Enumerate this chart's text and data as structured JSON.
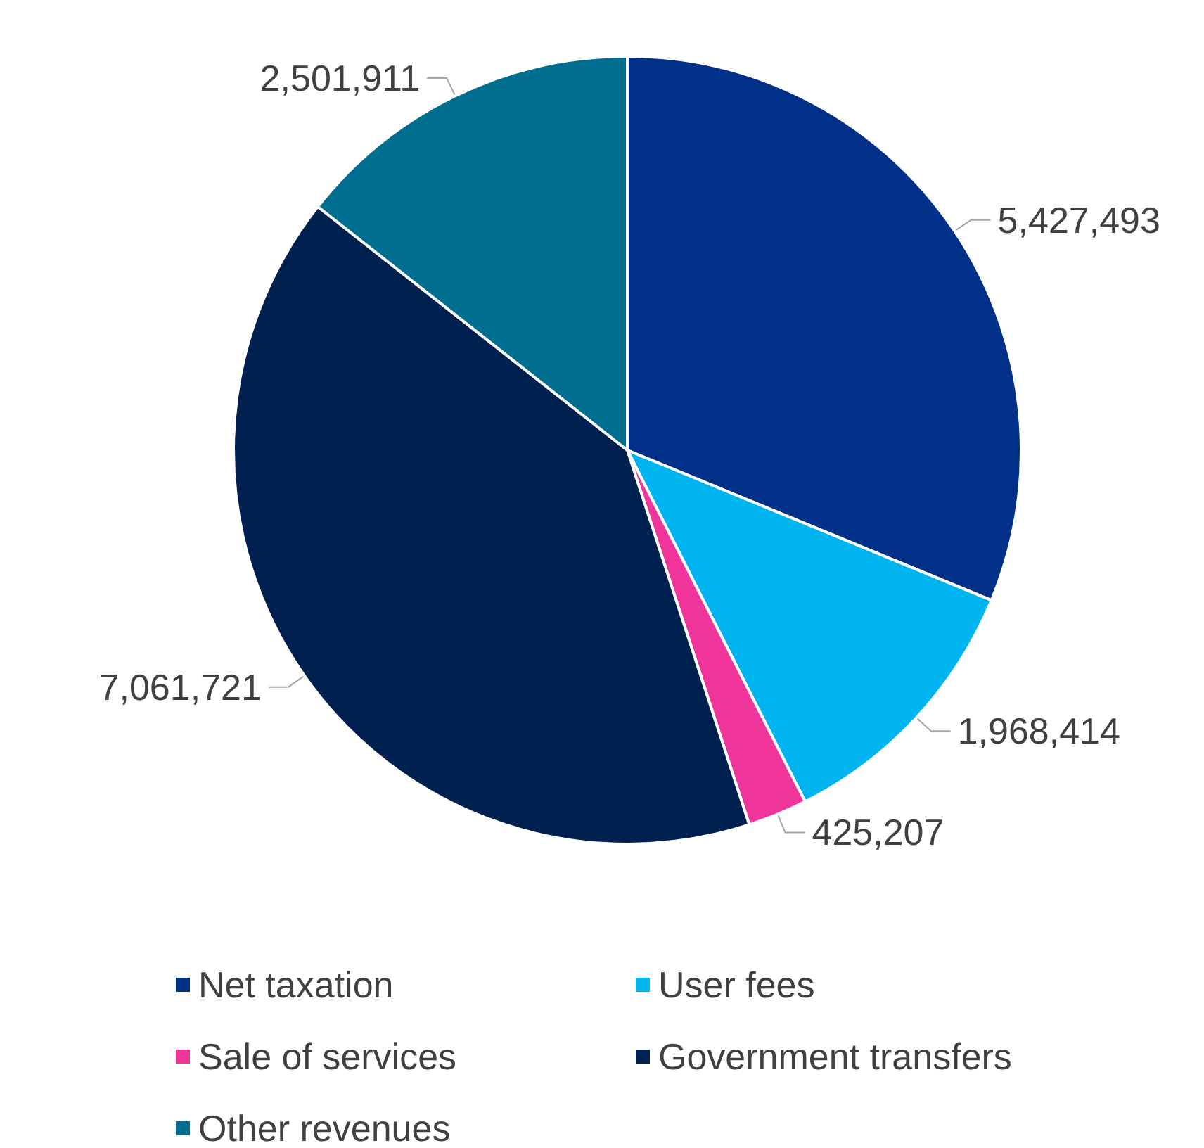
{
  "chart_data": {
    "type": "pie",
    "categories": [
      "Net taxation",
      "User fees",
      "Sale of services",
      "Government transfers",
      "Other revenues"
    ],
    "values": [
      5427493,
      1968414,
      425207,
      7061721,
      2501911
    ],
    "colors": [
      "#003087",
      "#00b4f0",
      "#f0359a",
      "#002050",
      "#006e8f"
    ],
    "value_labels": [
      "5,427,493",
      "1,968,414",
      "425,207",
      "7,061,721",
      "2,501,911"
    ],
    "legend": "bottom"
  }
}
